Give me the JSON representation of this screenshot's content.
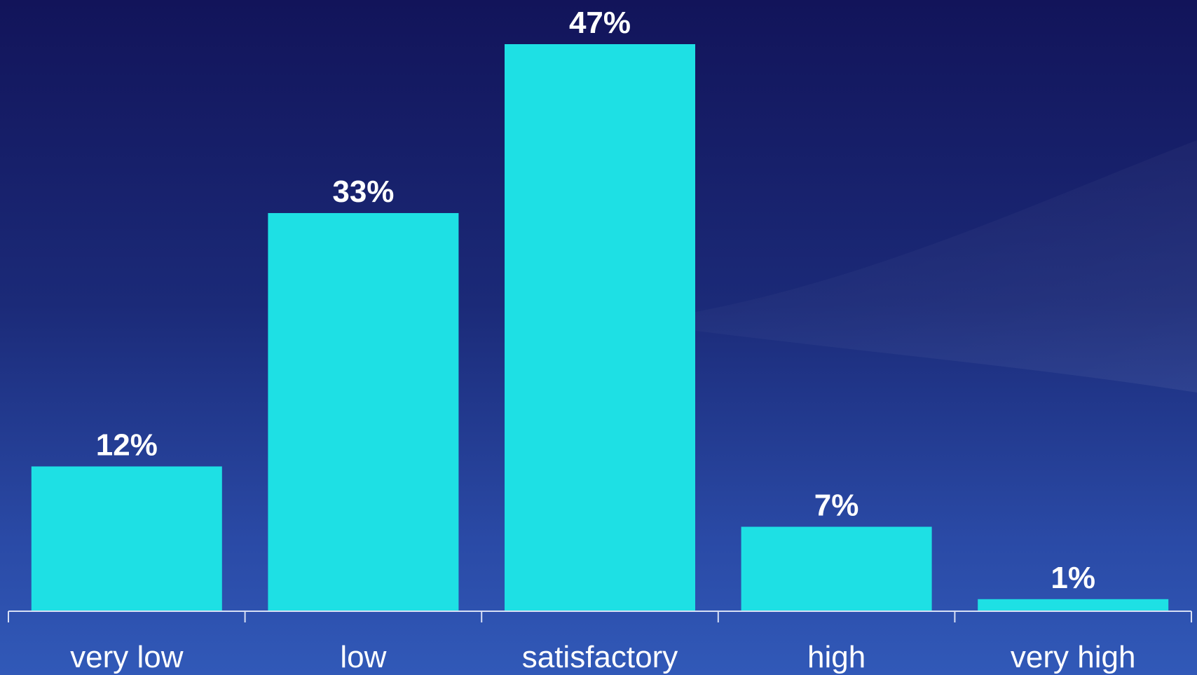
{
  "colors": {
    "bar": "#1ee0e4",
    "axis": "#d8e0f5",
    "text": "#ffffff"
  },
  "chart_data": {
    "type": "bar",
    "categories": [
      "very low",
      "low",
      "satisfactory",
      "high",
      "very high"
    ],
    "values": [
      12,
      33,
      47,
      7,
      1
    ],
    "data_labels": [
      "12%",
      "33%",
      "47%",
      "7%",
      "1%"
    ],
    "title": "",
    "xlabel": "",
    "ylabel": "",
    "ylim": [
      0,
      47
    ],
    "grid": false,
    "legend": "none"
  }
}
